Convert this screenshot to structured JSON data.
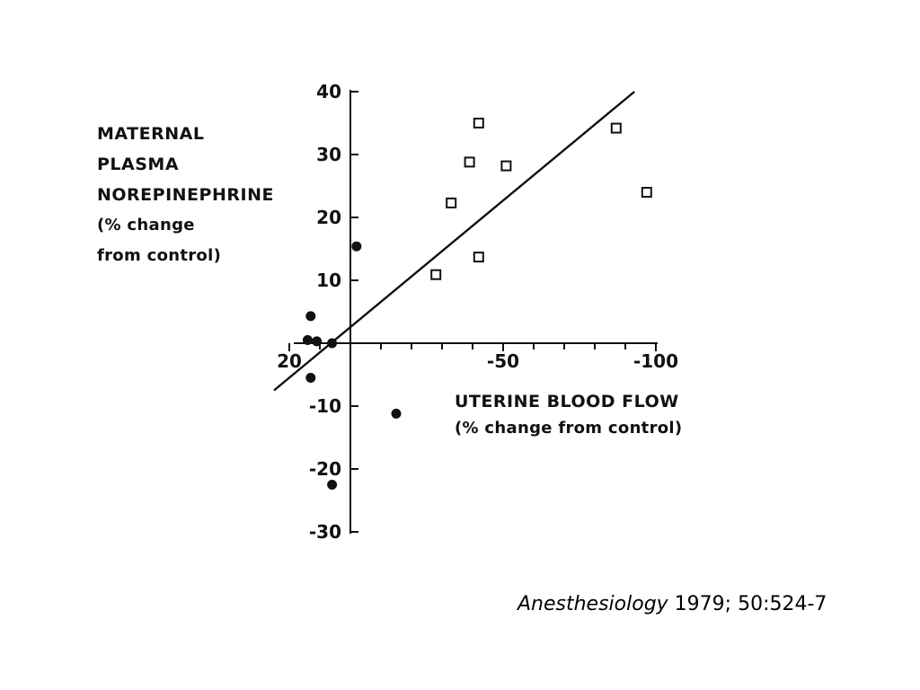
{
  "chart_data": {
    "type": "scatter",
    "ylabel_lines": [
      "MATERNAL",
      "PLASMA",
      "NOREPINEPHRINE",
      "(% change",
      "from control)"
    ],
    "xlabel": "UTERINE BLOOD FLOW",
    "xlabel_unit": "(% change from control)",
    "xlim": [
      20,
      -100
    ],
    "ylim": [
      -30,
      40
    ],
    "x_ticks": [
      {
        "value": 20,
        "label": "20"
      },
      {
        "value": -50,
        "label": "-50"
      },
      {
        "value": -100,
        "label": "-100"
      }
    ],
    "y_ticks": [
      {
        "value": 40,
        "label": "40"
      },
      {
        "value": 30,
        "label": "30"
      },
      {
        "value": 20,
        "label": "20"
      },
      {
        "value": 10,
        "label": "10"
      },
      {
        "value": -10,
        "label": "-10"
      },
      {
        "value": -20,
        "label": "-20"
      },
      {
        "value": -30,
        "label": "-30"
      }
    ],
    "x_minor_ticks": [
      10,
      -10,
      -20,
      -30,
      -40,
      -60,
      -70,
      -80,
      -90
    ],
    "y_minor_ticks": [
      0
    ],
    "series": [
      {
        "marker": "filled-circle",
        "points": [
          {
            "x": -2,
            "y": 15.4
          },
          {
            "x": 13,
            "y": 4.3
          },
          {
            "x": 14,
            "y": 0.5
          },
          {
            "x": 11,
            "y": 0.3
          },
          {
            "x": 6,
            "y": 0
          },
          {
            "x": 13,
            "y": -5.5
          },
          {
            "x": -15,
            "y": -11.2
          },
          {
            "x": 6,
            "y": -22.5
          }
        ]
      },
      {
        "marker": "open-square",
        "points": [
          {
            "x": -42,
            "y": 35
          },
          {
            "x": -39,
            "y": 28.8
          },
          {
            "x": -33,
            "y": 22.3
          },
          {
            "x": -51,
            "y": 28.2
          },
          {
            "x": -42,
            "y": 13.7
          },
          {
            "x": -28,
            "y": 10.9
          },
          {
            "x": -87,
            "y": 34.2
          },
          {
            "x": -97,
            "y": 24
          }
        ]
      }
    ],
    "regression_line": {
      "x": [
        25,
        -93
      ],
      "y": [
        -7.5,
        40
      ]
    }
  },
  "citation": {
    "journal": "Anesthesiology",
    "details": " 1979; 50:524-7"
  }
}
